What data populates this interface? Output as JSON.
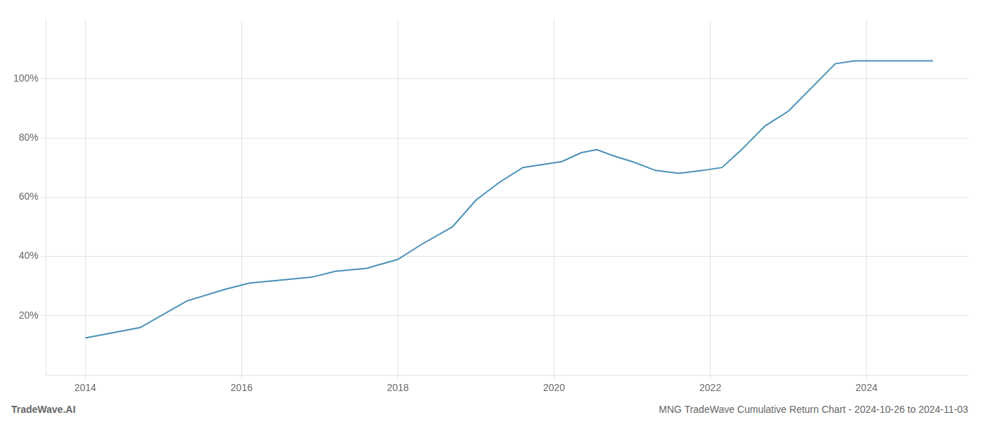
{
  "chart_data": {
    "type": "line",
    "title": "MNG TradeWave Cumulative Return Chart - 2024-10-26 to 2024-11-03",
    "annotations": [
      "TradeWave.AI"
    ],
    "x": [
      2014.0,
      2014.7,
      2015.3,
      2015.8,
      2016.1,
      2016.5,
      2016.9,
      2017.2,
      2017.6,
      2018.0,
      2018.3,
      2018.7,
      2019.0,
      2019.3,
      2019.6,
      2019.85,
      2020.1,
      2020.35,
      2020.55,
      2020.75,
      2021.0,
      2021.3,
      2021.6,
      2021.9,
      2022.15,
      2022.4,
      2022.7,
      2023.0,
      2023.3,
      2023.6,
      2023.85,
      2024.0,
      2024.5,
      2024.85
    ],
    "values": [
      12.5,
      16,
      25,
      29,
      31,
      32,
      33,
      35,
      36,
      39,
      44,
      50,
      59,
      65,
      70,
      71,
      72,
      75,
      76,
      74,
      72,
      69,
      68,
      69,
      70,
      76,
      84,
      89,
      97,
      105,
      106,
      106,
      106,
      106
    ],
    "color": "#4a90b8",
    "xlim": [
      2013.5,
      2025.3
    ],
    "ylim": [
      0,
      120
    ],
    "xticks": [
      2014,
      2016,
      2018,
      2020,
      2022,
      2024
    ],
    "yticks": [
      {
        "value": 20,
        "label": "20%"
      },
      {
        "value": 40,
        "label": "40%"
      },
      {
        "value": 60,
        "label": "60%"
      },
      {
        "value": 80,
        "label": "80%"
      },
      {
        "value": 100,
        "label": "100%"
      }
    ],
    "grid": true
  }
}
